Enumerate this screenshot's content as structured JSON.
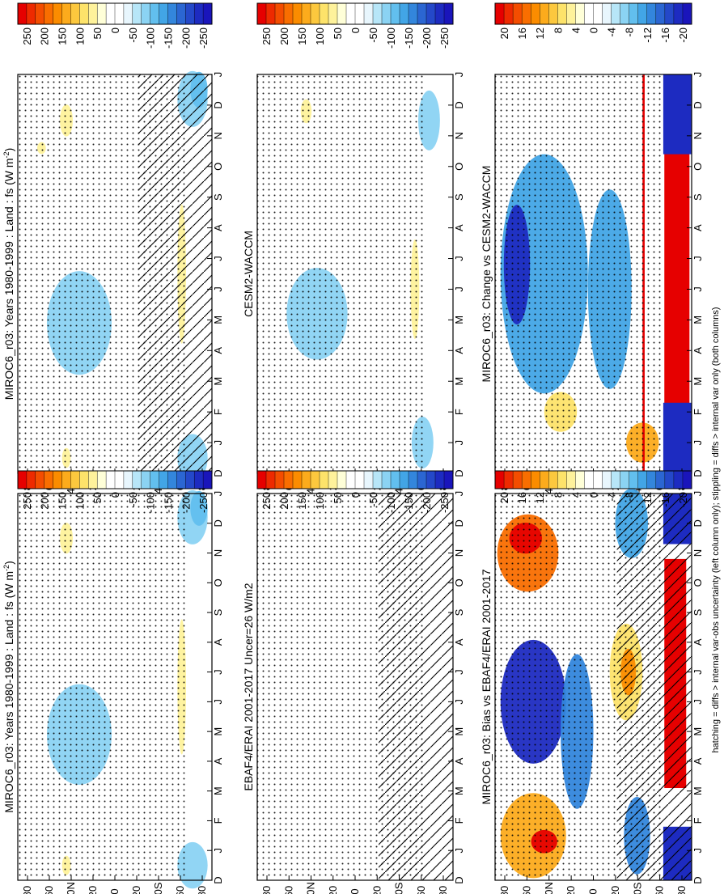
{
  "figure": {
    "footnote": "hatching = diffs > internal var-obs uncertainty (left column only); stippling = diffs > internal var only (both columns)"
  },
  "palettes": {
    "abs": [
      "#e60000",
      "#ee2a00",
      "#f44d00",
      "#f96e00",
      "#fb8c00",
      "#fcab1c",
      "#fcc83e",
      "#fde36a",
      "#fef29b",
      "#ffffd8",
      "#ffffff",
      "#ffffff",
      "#e8f6fd",
      "#b7e6f8",
      "#8bd3f3",
      "#62bfee",
      "#42a5e6",
      "#3386dc",
      "#2b66d2",
      "#2448c9",
      "#1d2bc1",
      "#1a15bb"
    ],
    "diff": [
      "#e60000",
      "#ee2a00",
      "#f44d00",
      "#f96e00",
      "#fb8c00",
      "#fcab1c",
      "#fcc83e",
      "#fde36a",
      "#fef29b",
      "#ffffd8",
      "#ffffff",
      "#ffffff",
      "#e8f6fd",
      "#b7e6f8",
      "#8bd3f3",
      "#62bfee",
      "#42a5e6",
      "#3386dc",
      "#2b66d2",
      "#2448c9",
      "#1d2bc1",
      "#1a15bb"
    ]
  },
  "chart_data": [
    {
      "type": "heatmap",
      "title": "MIROC6_r03: Years 1980-1999 : Land : fs (W m",
      "title_sup": "-2",
      "title_end": ")",
      "x": [
        "D",
        "J",
        "F",
        "M",
        "A",
        "M",
        "J",
        "J",
        "A",
        "S",
        "O",
        "N",
        "D",
        "J"
      ],
      "y_ticks": [
        "80",
        "60",
        "40",
        "20",
        "0",
        "20",
        "40",
        "60",
        "80"
      ],
      "y_suffix": {
        "2": "N",
        "6": "S"
      },
      "colorbar_labels": [
        "250",
        "200",
        "150",
        "100",
        "50",
        "0",
        "-50",
        "-100",
        "-150",
        "-200",
        "-250"
      ],
      "palette": "abs",
      "features": [
        {
          "kind": "blob",
          "color": "#8bd3f3",
          "month": 4.9,
          "lat": -33,
          "w": 2.6,
          "h": 30
        },
        {
          "kind": "blob",
          "color": "#8bd3f3",
          "month": 12.2,
          "lat": 72,
          "w": 1.4,
          "h": 14
        },
        {
          "kind": "blob",
          "color": "#8bd3f3",
          "month": 0.5,
          "lat": 72,
          "w": 1.2,
          "h": 14
        },
        {
          "kind": "blob",
          "color": "#62bfee",
          "month": 12.5,
          "lat": 78,
          "w": 0.9,
          "h": 8
        },
        {
          "kind": "blob",
          "color": "#fef29b",
          "month": 6.5,
          "lat": 62,
          "w": 3.5,
          "h": 4
        },
        {
          "kind": "blob",
          "color": "#fef29b",
          "month": 0.5,
          "lat": -45,
          "w": 0.5,
          "h": 4
        },
        {
          "kind": "blob",
          "color": "#fef29b",
          "month": 11.5,
          "lat": -45,
          "w": 0.8,
          "h": 6
        },
        {
          "kind": "blob",
          "color": "#fef29b",
          "month": 10.6,
          "lat": -68,
          "w": 0.3,
          "h": 4
        }
      ]
    },
    {
      "type": "heatmap",
      "title": "MIROC6_r03: Years 1980-1999 : Land : fs (W m",
      "title_sup": "-2",
      "title_end": ")",
      "x": [
        "D",
        "J",
        "F",
        "M",
        "A",
        "M",
        "J",
        "J",
        "A",
        "S",
        "O",
        "N",
        "D",
        "J"
      ],
      "y_ticks": [
        "80",
        "60",
        "40",
        "20",
        "0",
        "20",
        "40",
        "60",
        "80"
      ],
      "y_suffix": {
        "2": "N",
        "6": "S"
      },
      "colorbar_labels": [
        "250",
        "200",
        "150",
        "100",
        "50",
        "0",
        "-50",
        "-100",
        "-150",
        "-200",
        "-250"
      ],
      "palette": "abs",
      "features": [
        {
          "kind": "blob",
          "color": "#8bd3f3",
          "month": 4.9,
          "lat": -33,
          "w": 2.6,
          "h": 30
        },
        {
          "kind": "blob",
          "color": "#8bd3f3",
          "month": 12.2,
          "lat": 72,
          "w": 1.4,
          "h": 14
        },
        {
          "kind": "blob",
          "color": "#8bd3f3",
          "month": 0.5,
          "lat": 72,
          "w": 1.2,
          "h": 14
        },
        {
          "kind": "blob",
          "color": "#62bfee",
          "month": 12.5,
          "lat": 78,
          "w": 0.9,
          "h": 8
        },
        {
          "kind": "blob",
          "color": "#fef29b",
          "month": 6.5,
          "lat": 62,
          "w": 3.5,
          "h": 4
        },
        {
          "kind": "blob",
          "color": "#fef29b",
          "month": 0.5,
          "lat": -45,
          "w": 0.5,
          "h": 4
        },
        {
          "kind": "blob",
          "color": "#fef29b",
          "month": 11.5,
          "lat": -45,
          "w": 0.8,
          "h": 6
        }
      ]
    },
    {
      "type": "heatmap",
      "title": "EBAF4/ERAI 2001-2017 Uncer=26 W/m2",
      "title_sup": "",
      "title_end": "",
      "x": [
        "D",
        "J",
        "F",
        "M",
        "A",
        "M",
        "J",
        "J",
        "A",
        "S",
        "O",
        "N",
        "D",
        "J"
      ],
      "y_ticks": [
        "80",
        "60",
        "40",
        "20",
        "0",
        "20",
        "40",
        "60",
        "80"
      ],
      "y_suffix": {
        "2": "N",
        "6": "S"
      },
      "colorbar_labels": [
        "250",
        "200",
        "150",
        "100",
        "50",
        "0",
        "-50",
        "-100",
        "-150",
        "-200",
        "-250"
      ],
      "palette": "abs",
      "features": []
    },
    {
      "type": "heatmap",
      "title": "CESM2-WACCM",
      "title_sup": "",
      "title_end": "",
      "x": [
        "D",
        "J",
        "F",
        "M",
        "A",
        "M",
        "J",
        "J",
        "A",
        "S",
        "O",
        "N",
        "D",
        "J"
      ],
      "y_ticks": [
        "80",
        "60",
        "40",
        "20",
        "0",
        "20",
        "40",
        "60",
        "80"
      ],
      "y_suffix": {
        "2": "N",
        "6": "S"
      },
      "colorbar_labels": [
        "250",
        "200",
        "150",
        "100",
        "50",
        "0",
        "-50",
        "-100",
        "-150",
        "-200",
        "-250"
      ],
      "palette": "abs",
      "features": [
        {
          "kind": "blob",
          "color": "#8bd3f3",
          "month": 5.2,
          "lat": -35,
          "w": 2.3,
          "h": 28
        },
        {
          "kind": "blob",
          "color": "#8bd3f3",
          "month": 11.5,
          "lat": 68,
          "w": 1.5,
          "h": 10
        },
        {
          "kind": "blob",
          "color": "#8bd3f3",
          "month": 1.0,
          "lat": 62,
          "w": 1.3,
          "h": 10
        },
        {
          "kind": "blob",
          "color": "#fef29b",
          "month": 6.0,
          "lat": 55,
          "w": 2.5,
          "h": 4
        },
        {
          "kind": "blob",
          "color": "#fef29b",
          "month": 11.8,
          "lat": -45,
          "w": 0.6,
          "h": 5
        }
      ]
    },
    {
      "type": "heatmap",
      "title": "MIROC6_r03: Bias vs EBAF4/ERAI 2001-2017",
      "title_sup": "",
      "title_end": "",
      "x": [
        "D",
        "J",
        "F",
        "M",
        "A",
        "M",
        "J",
        "J",
        "A",
        "S",
        "O",
        "N",
        "D",
        "J"
      ],
      "y_ticks": [
        "80",
        "60",
        "40",
        "20",
        "0",
        "20",
        "40",
        "60",
        "80"
      ],
      "y_suffix": {
        "2": "N",
        "6": "S"
      },
      "colorbar_labels": [
        "20",
        "16",
        "12",
        "8",
        "4",
        "0",
        "-4",
        "-8",
        "-12",
        "-16",
        "-20"
      ],
      "palette": "diff",
      "features": [
        {
          "kind": "blob",
          "color": "#fcab1c",
          "month": 1.5,
          "lat": -55,
          "w": 2.2,
          "h": 30
        },
        {
          "kind": "blob",
          "color": "#e60000",
          "month": 1.3,
          "lat": -45,
          "w": 0.6,
          "h": 12
        },
        {
          "kind": "blob",
          "color": "#f96e00",
          "month": 11.0,
          "lat": -60,
          "w": 2.0,
          "h": 28
        },
        {
          "kind": "blob",
          "color": "#e60000",
          "month": 11.5,
          "lat": -62,
          "w": 0.8,
          "h": 15
        },
        {
          "kind": "blob",
          "color": "#1d2bc1",
          "month": 6.0,
          "lat": -55,
          "w": 3.2,
          "h": 30
        },
        {
          "kind": "blob",
          "color": "#3386dc",
          "month": 5.0,
          "lat": -15,
          "w": 4.0,
          "h": 15
        },
        {
          "kind": "blob",
          "color": "#fde36a",
          "month": 7.0,
          "lat": 30,
          "w": 2.5,
          "h": 15
        },
        {
          "kind": "blob",
          "color": "#fb8c00",
          "month": 7.0,
          "lat": 32,
          "w": 1.2,
          "h": 7
        },
        {
          "kind": "blob",
          "color": "#3386dc",
          "month": 1.5,
          "lat": 40,
          "w": 2.0,
          "h": 12
        },
        {
          "kind": "blob",
          "color": "#42a5e6",
          "month": 12.0,
          "lat": 35,
          "w": 1.8,
          "h": 15
        },
        {
          "kind": "band",
          "color": "#e60000",
          "m1": 3.1,
          "m2": 10.8,
          "lat1": 65,
          "lat2": 85
        },
        {
          "kind": "band",
          "color": "#1d2bc1",
          "m1": 0.0,
          "m2": 1.8,
          "lat1": 64,
          "lat2": 90
        },
        {
          "kind": "band",
          "color": "#1d2bc1",
          "m1": 11.3,
          "m2": 13.0,
          "lat1": 64,
          "lat2": 90
        }
      ]
    },
    {
      "type": "heatmap",
      "title": "MIROC6_r03: Change vs CESM2-WACCM",
      "title_sup": "",
      "title_end": "",
      "x": [
        "D",
        "J",
        "F",
        "M",
        "A",
        "M",
        "J",
        "J",
        "A",
        "S",
        "O",
        "N",
        "D",
        "J"
      ],
      "y_ticks": [
        "80",
        "60",
        "40",
        "20",
        "0",
        "20",
        "40",
        "60",
        "80"
      ],
      "y_suffix": {
        "2": "N",
        "6": "S"
      },
      "colorbar_labels": [
        "20",
        "16",
        "12",
        "8",
        "4",
        "0",
        "-4",
        "-8",
        "-12",
        "-16",
        "-20"
      ],
      "palette": "diff",
      "features": [
        {
          "kind": "blob",
          "color": "#42a5e6",
          "month": 6.5,
          "lat": -45,
          "w": 6.0,
          "h": 40
        },
        {
          "kind": "blob",
          "color": "#1d2bc1",
          "month": 6.8,
          "lat": -70,
          "w": 3.0,
          "h": 12
        },
        {
          "kind": "blob",
          "color": "#42a5e6",
          "month": 6.0,
          "lat": 15,
          "w": 5.0,
          "h": 20
        },
        {
          "kind": "blob",
          "color": "#fde36a",
          "month": 2.0,
          "lat": -30,
          "w": 1.0,
          "h": 15
        },
        {
          "kind": "blob",
          "color": "#fcab1c",
          "month": 1.0,
          "lat": 45,
          "w": 1.0,
          "h": 15
        },
        {
          "kind": "band",
          "color": "#e60000",
          "m1": 2.2,
          "m2": 10.5,
          "lat1": 65,
          "lat2": 88
        },
        {
          "kind": "band",
          "color": "#1d2bc1",
          "m1": 0.0,
          "m2": 2.3,
          "lat1": 64,
          "lat2": 90
        },
        {
          "kind": "band",
          "color": "#1d2bc1",
          "m1": 10.4,
          "m2": 13.0,
          "lat1": 64,
          "lat2": 90
        },
        {
          "kind": "band",
          "color": "#e60000",
          "m1": 0.0,
          "m2": 13.0,
          "lat1": 45,
          "lat2": 47
        }
      ]
    }
  ]
}
